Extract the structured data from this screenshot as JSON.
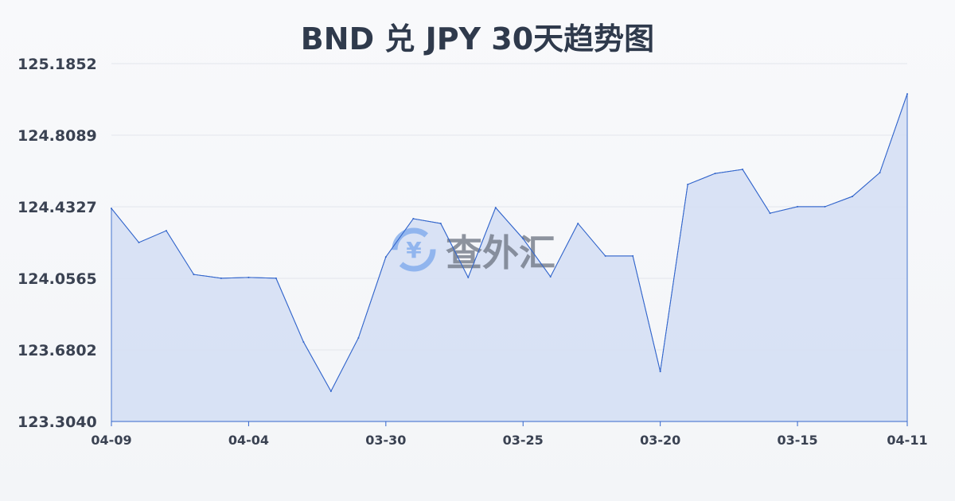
{
  "chart_data": {
    "type": "area",
    "title": "BND 兑 JPY 30天趋势图",
    "xlabel": "",
    "ylabel": "",
    "ylim": [
      123.304,
      125.1852
    ],
    "yticks": [
      "123.3040",
      "123.6802",
      "124.0565",
      "124.4327",
      "124.8089",
      "125.1852"
    ],
    "xticks": [
      {
        "label": "04-09",
        "index": 0
      },
      {
        "label": "04-04",
        "index": 5
      },
      {
        "label": "03-30",
        "index": 10
      },
      {
        "label": "03-25",
        "index": 15
      },
      {
        "label": "03-20",
        "index": 20
      },
      {
        "label": "03-15",
        "index": 25
      },
      {
        "label": "04-11",
        "index": 29
      }
    ],
    "grid": true,
    "values": [
      124.424,
      124.245,
      124.307,
      124.077,
      124.057,
      124.061,
      124.057,
      123.722,
      123.463,
      123.743,
      124.169,
      124.37,
      124.345,
      124.061,
      124.428,
      124.265,
      124.065,
      124.345,
      124.174,
      124.174,
      123.567,
      124.55,
      124.608,
      124.629,
      124.399,
      124.433,
      124.433,
      124.487,
      124.612,
      125.026
    ],
    "colors": {
      "line": "#3366cc",
      "fill": "#d6e0f5"
    }
  },
  "watermark": "查外汇"
}
